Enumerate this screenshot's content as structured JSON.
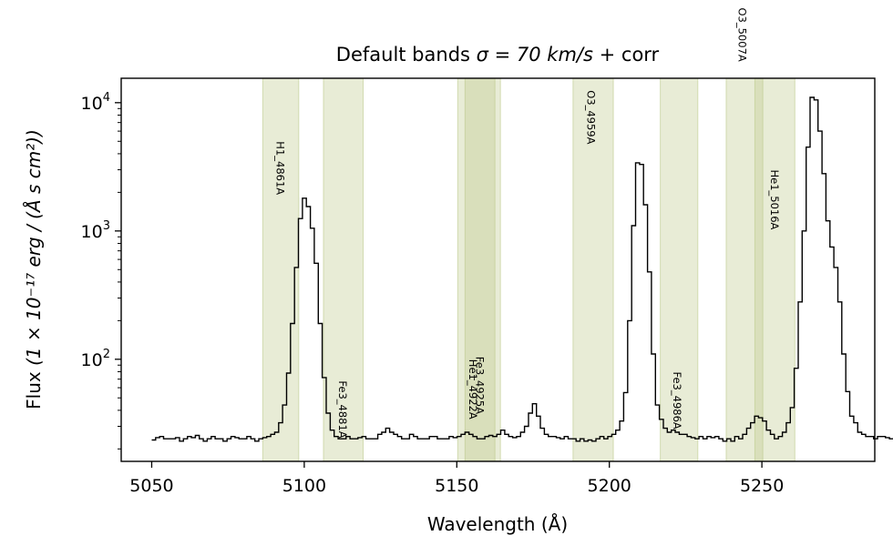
{
  "chart_data": {
    "type": "line",
    "title_prefix": "Default bands ",
    "title_math": "σ = 70 km/s",
    "title_suffix": " + corr",
    "xlabel": "Wavelength (Å)",
    "ylabel_prefix": "Flux",
    "ylabel_math": "(1 × 10⁻¹⁷ erg / (Å s cm²))",
    "xlim": [
      5040,
      5287
    ],
    "ylim": [
      16,
      15500
    ],
    "yscale": "log",
    "xticks": [
      5050,
      5100,
      5150,
      5200,
      5250
    ],
    "yticks": [
      {
        "value": 100,
        "label_base": "10",
        "label_exp": "2"
      },
      {
        "value": 1000,
        "label_base": "10",
        "label_exp": "3"
      },
      {
        "value": 10000,
        "label_base": "10",
        "label_exp": "4"
      }
    ],
    "bands": [
      {
        "from": 5086.4,
        "to": 5098.2
      },
      {
        "from": 5106.3,
        "to": 5119.3
      },
      {
        "from": 5150.3,
        "to": 5162.5
      },
      {
        "from": 5152.7,
        "to": 5164.3
      },
      {
        "from": 5188.1,
        "to": 5201.3
      },
      {
        "from": 5216.7,
        "to": 5229.0
      },
      {
        "from": 5238.3,
        "to": 5250.3
      },
      {
        "from": 5247.7,
        "to": 5260.8
      }
    ],
    "band_color": "#bcc98a",
    "line_labels": [
      {
        "text": "H1_4861A",
        "x": 5092.1,
        "y": 5000
      },
      {
        "text": "Fe3_4881A",
        "x": 5112.6,
        "y": 68
      },
      {
        "text": "Fe3_4925A",
        "x": 5157.5,
        "y": 105
      },
      {
        "text": "He1_4922A",
        "x": 5155.3,
        "y": 100
      },
      {
        "text": "O3_4959A",
        "x": 5193.9,
        "y": 12500
      },
      {
        "text": "Fe3_4986A",
        "x": 5222.2,
        "y": 80
      },
      {
        "text": "O3_5007A",
        "x": 5243.5,
        "y": 55000
      },
      {
        "text": "He1_5016A",
        "x": 5254.1,
        "y": 3000
      }
    ],
    "series": [
      {
        "x0": 5050,
        "dx": 1.3,
        "values": [
          23.5,
          24.5,
          25,
          24,
          24,
          24,
          24.5,
          23,
          24,
          25,
          24.5,
          25.5,
          24,
          23,
          24,
          25,
          24,
          24,
          23,
          24,
          25,
          24.5,
          24,
          24,
          25,
          24,
          23,
          24,
          24.5,
          25,
          26,
          27,
          32,
          44,
          78,
          190,
          520,
          1250,
          1800,
          1550,
          1050,
          560,
          190,
          72,
          38,
          28,
          25,
          24,
          24,
          25,
          24,
          24,
          24.5,
          25,
          24,
          24,
          24,
          26,
          27,
          29,
          27,
          26,
          25,
          24,
          24,
          26,
          25,
          24,
          24,
          24,
          25,
          25,
          24,
          24,
          24,
          25,
          24.5,
          25,
          26,
          27,
          26,
          25,
          24,
          24,
          25,
          25.5,
          25,
          26,
          28,
          26,
          25,
          24.5,
          25,
          27,
          30,
          38,
          45,
          36,
          29,
          26,
          25,
          25,
          24.5,
          24,
          25,
          24,
          24,
          23,
          24,
          23,
          23.5,
          23,
          24,
          25,
          24,
          25,
          26,
          28,
          33,
          55,
          200,
          1100,
          3400,
          3300,
          1600,
          480,
          110,
          44,
          34,
          29,
          27,
          28,
          27,
          26,
          26,
          25,
          24.5,
          24,
          25,
          24,
          25,
          24.5,
          25,
          24,
          23,
          24,
          23,
          25,
          24,
          26,
          29,
          32,
          36,
          35,
          33,
          28,
          26,
          24,
          25,
          27,
          32,
          42,
          85,
          280,
          1000,
          4500,
          11000,
          10500,
          6000,
          2800,
          1200,
          750,
          520,
          280,
          110,
          56,
          36,
          32,
          27,
          26,
          25,
          25,
          24,
          25,
          25,
          24.5,
          24,
          24,
          25,
          24,
          24.5,
          25,
          25.5,
          26,
          25,
          24,
          24
        ]
      }
    ]
  }
}
